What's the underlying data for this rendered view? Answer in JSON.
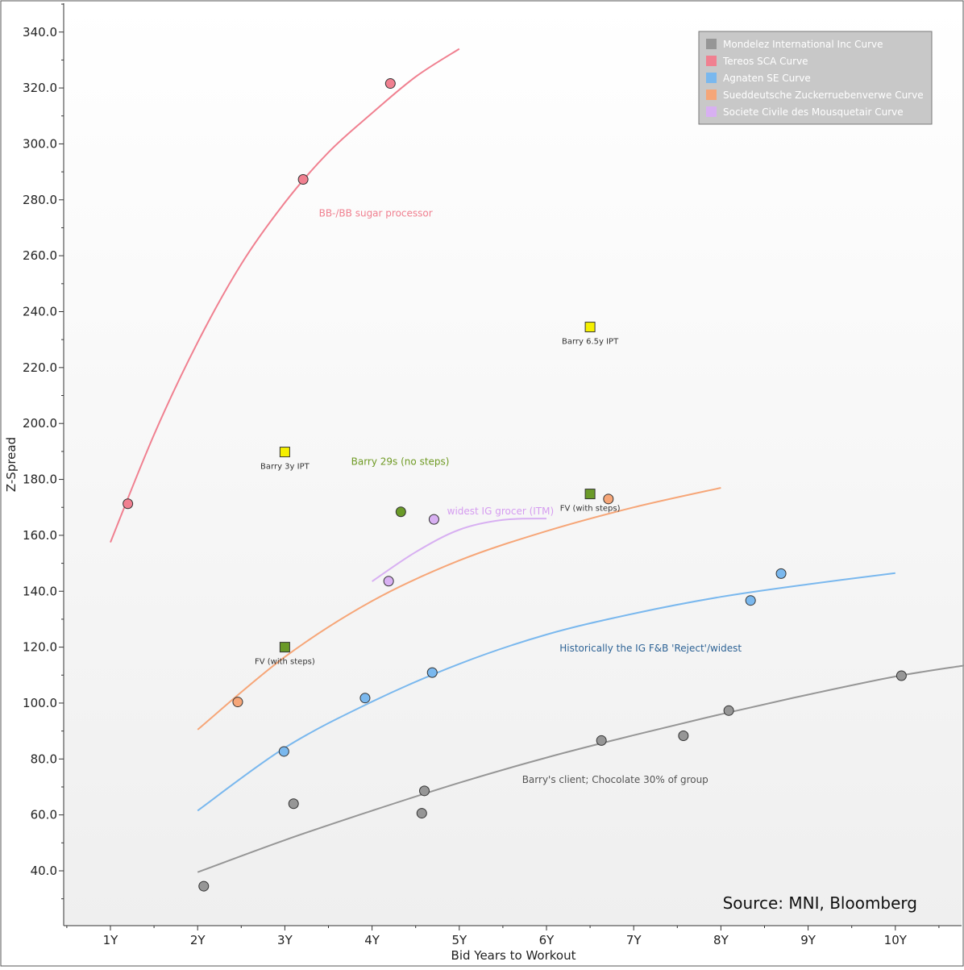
{
  "chart_data": {
    "type": "scatter",
    "title": "",
    "xlabel": "Bid Years to Workout",
    "ylabel": "Z-Spread",
    "xlim": [
      0.45,
      10.8
    ],
    "ylim": [
      20,
      350
    ],
    "x_ticks": [
      1,
      2,
      3,
      4,
      5,
      6,
      7,
      8,
      9,
      10
    ],
    "x_tick_labels": [
      "1Y",
      "2Y",
      "3Y",
      "4Y",
      "5Y",
      "6Y",
      "7Y",
      "8Y",
      "9Y",
      "10Y"
    ],
    "y_ticks": [
      40,
      60,
      80,
      100,
      120,
      140,
      160,
      180,
      200,
      220,
      240,
      260,
      280,
      300,
      320,
      340
    ],
    "y_tick_labels": [
      "40.0",
      "60.0",
      "80.0",
      "100.0",
      "120.0",
      "140.0",
      "160.0",
      "180.0",
      "200.0",
      "220.0",
      "240.0",
      "260.0",
      "280.0",
      "300.0",
      "320.0",
      "340.0"
    ],
    "legend_position": "top-right",
    "source": "Source: MNI, Bloomberg",
    "series": [
      {
        "name": "Mondelez International Inc Curve",
        "color": "#969696",
        "points": [
          [
            2.07,
            34.5
          ],
          [
            3.1,
            64
          ],
          [
            4.57,
            60.6
          ],
          [
            4.6,
            68.6
          ],
          [
            6.63,
            86.6
          ],
          [
            7.57,
            88.3
          ],
          [
            8.09,
            97.3
          ],
          [
            10.07,
            109.8
          ]
        ],
        "curve": [
          [
            2,
            39.5
          ],
          [
            3,
            51
          ],
          [
            4,
            61.5
          ],
          [
            5,
            71.5
          ],
          [
            6,
            80.5
          ],
          [
            7,
            88.5
          ],
          [
            8,
            96
          ],
          [
            9,
            103
          ],
          [
            10,
            109.5
          ],
          [
            10.8,
            113.5
          ]
        ]
      },
      {
        "name": "Tereos SCA Curve",
        "color": "#f08090",
        "points": [
          [
            1.2,
            171.3
          ],
          [
            3.21,
            287.3
          ],
          [
            4.21,
            321.6
          ]
        ],
        "curve": [
          [
            1,
            157.5
          ],
          [
            1.5,
            196
          ],
          [
            2,
            229
          ],
          [
            2.5,
            257
          ],
          [
            3,
            279
          ],
          [
            3.5,
            297
          ],
          [
            4,
            311
          ],
          [
            4.5,
            324
          ],
          [
            5,
            334
          ]
        ]
      },
      {
        "name": "Agnaten SE Curve",
        "color": "#7ab8ee",
        "points": [
          [
            2.99,
            82.7
          ],
          [
            3.92,
            101.8
          ],
          [
            4.69,
            110.9
          ],
          [
            8.34,
            136.7
          ],
          [
            8.69,
            146.3
          ]
        ],
        "curve": [
          [
            2,
            61.5
          ],
          [
            3,
            84
          ],
          [
            4,
            100.5
          ],
          [
            5,
            114
          ],
          [
            6,
            124.5
          ],
          [
            7,
            132
          ],
          [
            8,
            138
          ],
          [
            9,
            142.5
          ],
          [
            10,
            146.5
          ]
        ]
      },
      {
        "name": "Sueddeutsche Zuckerruebenverwe Curve",
        "color": "#f6a678",
        "points": [
          [
            2.46,
            100.4
          ],
          [
            6.71,
            173
          ]
        ],
        "curve": [
          [
            2,
            90.5
          ],
          [
            3,
            116.5
          ],
          [
            4,
            136.5
          ],
          [
            5,
            151
          ],
          [
            6,
            161.5
          ],
          [
            7,
            170
          ],
          [
            8,
            177
          ]
        ]
      },
      {
        "name": "Societe Civile des Mousquetair Curve",
        "color": "#d8b0f2",
        "points": [
          [
            4.19,
            143.6
          ],
          [
            4.71,
            165.7
          ]
        ],
        "curve": [
          [
            4,
            143.5
          ],
          [
            4.5,
            154
          ],
          [
            5,
            162
          ],
          [
            5.5,
            165.5
          ],
          [
            6,
            166
          ]
        ]
      }
    ],
    "markers": [
      {
        "label": "Barry 6.5y IPT",
        "x": 6.5,
        "y": 234.5,
        "color": "#f5f000",
        "shape": "square"
      },
      {
        "label": "Barry 3y IPT",
        "x": 3.0,
        "y": 189.8,
        "color": "#f5f000",
        "shape": "square"
      },
      {
        "label": "FV (with steps)",
        "x": 6.5,
        "y": 174.8,
        "color": "#6a9a28",
        "shape": "square"
      },
      {
        "label": "FV (with steps)",
        "x": 3.0,
        "y": 120,
        "color": "#6a9a28",
        "shape": "square"
      },
      {
        "label": "",
        "x": 4.33,
        "y": 168.4,
        "color": "#6a9a28",
        "shape": "circle"
      }
    ],
    "annotations": [
      {
        "text": "BB-/BB sugar processor",
        "x": 3.39,
        "y": 274,
        "color": "#f08090"
      },
      {
        "text": "Barry 29s (no steps)",
        "x": 3.76,
        "y": 185.2,
        "color": "#6f9a24"
      },
      {
        "text": "widest IG grocer (ITM)",
        "x": 4.86,
        "y": 167.5,
        "color": "#d59cf0"
      },
      {
        "text": "Historically the IG F&B 'Reject'/widest",
        "x": 6.15,
        "y": 118.4,
        "color": "#2f6496"
      },
      {
        "text": "Barry's client; Chocolate 30% of group",
        "x": 5.72,
        "y": 71.4,
        "color": "#555555"
      }
    ],
    "colors": {
      "axis": "#333333",
      "legend_bg": "#c8c8c8",
      "legend_text": "#ffffff",
      "frame": "#555555"
    }
  }
}
